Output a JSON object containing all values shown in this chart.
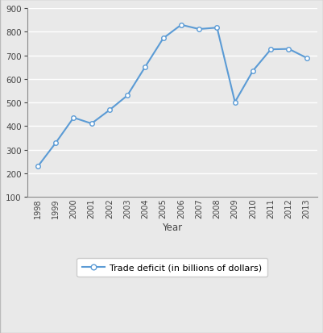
{
  "years": [
    1998,
    1999,
    2000,
    2001,
    2002,
    2003,
    2004,
    2005,
    2006,
    2007,
    2008,
    2009,
    2010,
    2011,
    2012,
    2013
  ],
  "values": [
    229,
    329,
    436,
    411,
    468,
    530,
    652,
    772,
    829,
    811,
    817,
    502,
    634,
    725,
    727,
    689
  ],
  "line_color": "#5b9bd5",
  "marker": "o",
  "marker_facecolor": "#ffffff",
  "marker_edgecolor": "#5b9bd5",
  "marker_size": 4,
  "line_width": 1.5,
  "xlabel": "Year",
  "ylim": [
    100,
    900
  ],
  "yticks": [
    100,
    200,
    300,
    400,
    500,
    600,
    700,
    800,
    900
  ],
  "background_color": "#e9e9e9",
  "plot_bg_color": "#e9e9e9",
  "legend_label": "Trade deficit (in billions of dollars)",
  "grid_color": "#ffffff",
  "border_color": "#aaaaaa"
}
